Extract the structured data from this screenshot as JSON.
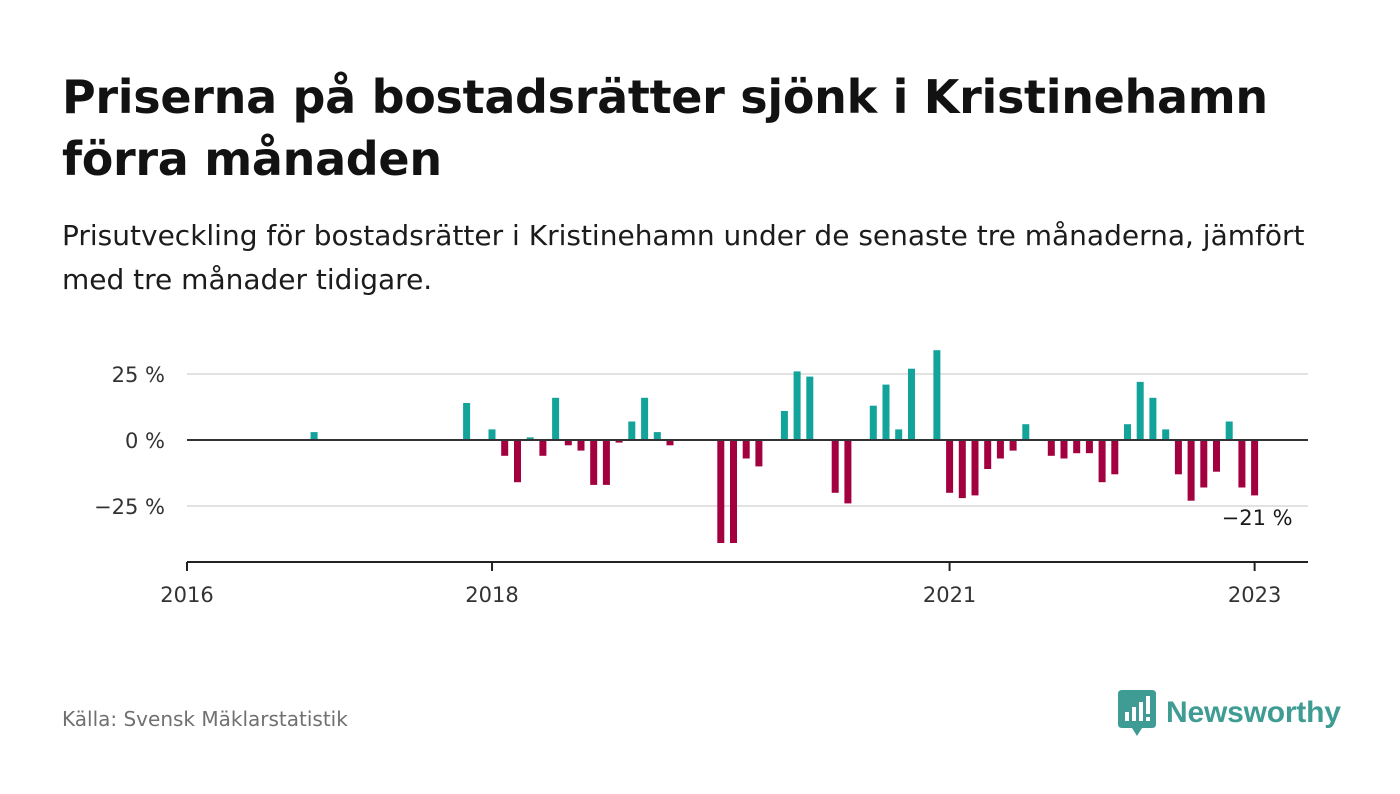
{
  "colors": {
    "positive": "#12a39a",
    "negative": "#a3003f",
    "grid": "#d8d8d8",
    "axis": "#222222",
    "brand": "#3f9c94"
  },
  "header": {
    "title": "Priserna på bostadsrätter sjönk i Kristinehamn förra månaden",
    "subtitle": "Prisutveckling för bostadsrätter i Kristinehamn under de senaste tre månaderna, jämfört med tre månader tidigare."
  },
  "footer": {
    "source": "Källa: Svensk Mäklarstatistik",
    "brand": "Newsworthy"
  },
  "chart_data": {
    "type": "bar",
    "title": "",
    "xlabel": "",
    "ylabel": "",
    "x_ticks": [
      {
        "value": 2016,
        "label": "2016"
      },
      {
        "value": 2018,
        "label": "2018"
      },
      {
        "value": 2021,
        "label": "2021"
      },
      {
        "value": 2023,
        "label": "2023"
      }
    ],
    "y_ticks": [
      {
        "value": 25,
        "label": "25 %"
      },
      {
        "value": 0,
        "label": "0 %"
      },
      {
        "value": -25,
        "label": "−25 %"
      }
    ],
    "ylim": [
      -45,
      37
    ],
    "xlim": [
      2016.0,
      2023.35
    ],
    "grid": true,
    "series": [
      {
        "points": [
          {
            "x": "2016-11",
            "y": 3
          },
          {
            "x": "2017-11",
            "y": 14
          },
          {
            "x": "2018-01",
            "y": 4
          },
          {
            "x": "2018-02",
            "y": -6
          },
          {
            "x": "2018-03",
            "y": -16
          },
          {
            "x": "2018-04",
            "y": 1
          },
          {
            "x": "2018-05",
            "y": -6
          },
          {
            "x": "2018-06",
            "y": 16
          },
          {
            "x": "2018-07",
            "y": -2
          },
          {
            "x": "2018-08",
            "y": -4
          },
          {
            "x": "2018-09",
            "y": -17
          },
          {
            "x": "2018-10",
            "y": -17
          },
          {
            "x": "2018-11",
            "y": -1
          },
          {
            "x": "2018-12",
            "y": 7
          },
          {
            "x": "2019-01",
            "y": 16
          },
          {
            "x": "2019-02",
            "y": 3
          },
          {
            "x": "2019-03",
            "y": -2
          },
          {
            "x": "2019-07",
            "y": -39
          },
          {
            "x": "2019-08",
            "y": -39
          },
          {
            "x": "2019-09",
            "y": -7
          },
          {
            "x": "2019-10",
            "y": -10
          },
          {
            "x": "2019-12",
            "y": 11
          },
          {
            "x": "2020-01",
            "y": 26
          },
          {
            "x": "2020-02",
            "y": 24
          },
          {
            "x": "2020-04",
            "y": -20
          },
          {
            "x": "2020-05",
            "y": -24
          },
          {
            "x": "2020-07",
            "y": 13
          },
          {
            "x": "2020-08",
            "y": 21
          },
          {
            "x": "2020-09",
            "y": 4
          },
          {
            "x": "2020-10",
            "y": 27
          },
          {
            "x": "2020-12",
            "y": 34
          },
          {
            "x": "2021-01",
            "y": -20
          },
          {
            "x": "2021-02",
            "y": -22
          },
          {
            "x": "2021-03",
            "y": -21
          },
          {
            "x": "2021-04",
            "y": -11
          },
          {
            "x": "2021-05",
            "y": -7
          },
          {
            "x": "2021-06",
            "y": -4
          },
          {
            "x": "2021-07",
            "y": 6
          },
          {
            "x": "2021-09",
            "y": -6
          },
          {
            "x": "2021-10",
            "y": -7
          },
          {
            "x": "2021-11",
            "y": -5
          },
          {
            "x": "2021-12",
            "y": -5
          },
          {
            "x": "2022-01",
            "y": -16
          },
          {
            "x": "2022-02",
            "y": -13
          },
          {
            "x": "2022-03",
            "y": 6
          },
          {
            "x": "2022-04",
            "y": 22
          },
          {
            "x": "2022-05",
            "y": 16
          },
          {
            "x": "2022-06",
            "y": 4
          },
          {
            "x": "2022-07",
            "y": -13
          },
          {
            "x": "2022-08",
            "y": -23
          },
          {
            "x": "2022-09",
            "y": -18
          },
          {
            "x": "2022-10",
            "y": -12
          },
          {
            "x": "2022-11",
            "y": 7
          },
          {
            "x": "2022-12",
            "y": -18
          },
          {
            "x": "2023-01",
            "y": -21
          }
        ]
      }
    ],
    "annotation": {
      "x": "2023-01",
      "text": "−21 %"
    }
  }
}
